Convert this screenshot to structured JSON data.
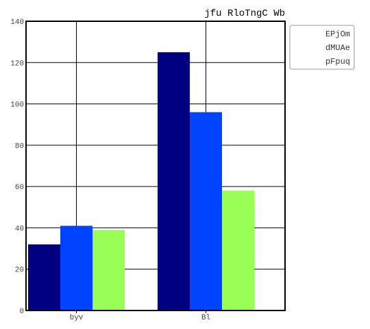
{
  "chart_data": {
    "type": "bar",
    "title": "jfu RloTngC Wb",
    "xlabel": "",
    "ylabel": "",
    "categories": [
      "byv",
      "Bl"
    ],
    "series": [
      {
        "name": "EPjOm",
        "values": [
          32,
          125
        ],
        "color": "#000080"
      },
      {
        "name": "dMUAe",
        "values": [
          41,
          96
        ],
        "color": "#0044ff"
      },
      {
        "name": "pFpuq",
        "values": [
          39,
          58
        ],
        "color": "#99ff55"
      }
    ],
    "ylim": [
      0,
      140
    ],
    "yticks": [
      0,
      20,
      40,
      60,
      80,
      100,
      120,
      140
    ],
    "grid": true,
    "legend_position": "top-right"
  }
}
